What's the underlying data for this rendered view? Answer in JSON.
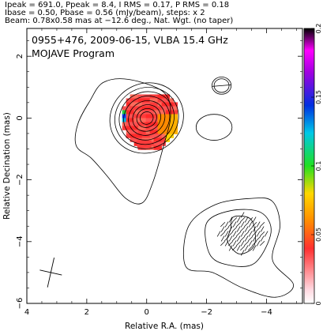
{
  "header": {
    "line1": "Ipeak = 691.0, Ppeak = 8.4, I RMS = 0.17, P RMS = 0.18",
    "line2": "Ibase = 0.50, Pbase = 0.56 (mJy/beam), steps: x 2",
    "line3": "Beam: 0.78x0.58 mas at −12.6 deg., Nat. Wgt. (no taper)"
  },
  "plot": {
    "title1": "0955+476, 2009-06-15, VLBA 15.4 GHz",
    "title2": "MOJAVE Program"
  },
  "chart_data": {
    "type": "heatmap",
    "xlabel": "Relative R.A. (mas)",
    "ylabel": "Relative Decination (mas)",
    "xlim": [
      4,
      -5.2
    ],
    "ylim": [
      -6,
      2.9
    ],
    "x_ticks": [
      4,
      2,
      0,
      -2,
      -4
    ],
    "x_tick_labels": [
      "4",
      "2",
      "0",
      "−2",
      "−4"
    ],
    "y_ticks": [
      2,
      0,
      -2,
      -4,
      -6
    ],
    "y_tick_labels": [
      "2",
      "0",
      "−2",
      "−4",
      "−6"
    ],
    "colorbar": {
      "range": [
        0,
        0.2
      ],
      "ticks": [
        0,
        0.05,
        0.1,
        0.15,
        0.2
      ],
      "tick_labels": [
        "0",
        "0.05",
        "0.1",
        "0.15",
        "0.2"
      ]
    },
    "beam": {
      "major_mas": 0.78,
      "minor_mas": 0.58,
      "pa_deg": -12.6,
      "center": [
        3.2,
        -5.0
      ]
    },
    "core_contours": {
      "center": [
        0.0,
        0.0
      ],
      "radii_mas": [
        [
          0.22,
          0.2
        ],
        [
          0.34,
          0.3
        ],
        [
          0.48,
          0.42
        ],
        [
          0.62,
          0.55
        ],
        [
          0.78,
          0.7
        ],
        [
          0.93,
          0.84
        ],
        [
          1.08,
          0.98
        ],
        [
          1.25,
          1.12
        ]
      ]
    },
    "outer_contour": [
      [
        1.9,
        0.55
      ],
      [
        1.45,
        1.15
      ],
      [
        0.6,
        1.25
      ],
      [
        -0.55,
        0.85
      ],
      [
        -0.8,
        0.1
      ],
      [
        -0.55,
        -0.95
      ],
      [
        -0.2,
        -2.1
      ],
      [
        0.15,
        -2.75
      ],
      [
        0.7,
        -2.6
      ],
      [
        1.3,
        -1.9
      ],
      [
        1.85,
        -1.3
      ],
      [
        2.35,
        -0.9
      ],
      [
        2.3,
        -0.2
      ]
    ],
    "knot_contours": [
      {
        "center": [
          -2.25,
          -0.3
        ],
        "radii_mas": [
          [
            0.6,
            0.42
          ]
        ]
      },
      {
        "center": [
          -2.5,
          1.05
        ],
        "radii_mas": [
          [
            0.25,
            0.22
          ],
          [
            0.32,
            0.28
          ]
        ]
      }
    ],
    "lobe_contours": {
      "outer": [
        [
          -1.3,
          -4.8
        ],
        [
          -1.4,
          -3.5
        ],
        [
          -2.3,
          -2.8
        ],
        [
          -3.5,
          -2.6
        ],
        [
          -4.2,
          -2.7
        ],
        [
          -4.45,
          -3.5
        ],
        [
          -4.2,
          -4.6
        ],
        [
          -4.9,
          -5.4
        ],
        [
          -4.3,
          -5.8
        ],
        [
          -3.2,
          -5.5
        ],
        [
          -2.2,
          -5.0
        ]
      ],
      "mid": [
        [
          -2.1,
          -4.4
        ],
        [
          -2.0,
          -3.4
        ],
        [
          -2.8,
          -3.0
        ],
        [
          -3.8,
          -3.05
        ],
        [
          -4.15,
          -3.7
        ],
        [
          -3.6,
          -4.7
        ],
        [
          -2.7,
          -4.75
        ]
      ],
      "inner": [
        [
          -2.8,
          -3.6
        ],
        [
          -2.9,
          -3.2
        ],
        [
          -3.5,
          -3.3
        ],
        [
          -3.6,
          -4.1
        ],
        [
          -3.1,
          -4.4
        ],
        [
          -2.7,
          -4.0
        ]
      ]
    },
    "polarization_map": {
      "center": [
        -0.05,
        0.05
      ],
      "extent_mas": [
        -0.9,
        1.1,
        -1.5,
        0.9
      ],
      "color_scale": "fractional polarization (colorbar 0-0.2)"
    }
  }
}
